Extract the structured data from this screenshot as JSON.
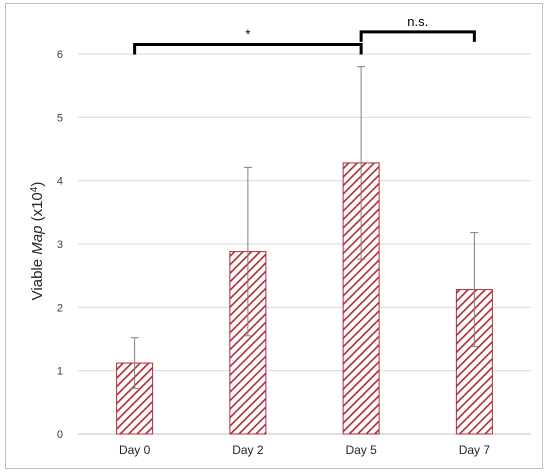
{
  "chart_data": {
    "type": "bar",
    "categories": [
      "Day 0",
      "Day 2",
      "Day 5",
      "Day 7"
    ],
    "values": [
      1.12,
      2.88,
      4.28,
      2.28
    ],
    "error_up": [
      0.4,
      1.33,
      1.52,
      0.9
    ],
    "error_down": [
      0.4,
      1.33,
      1.52,
      0.9
    ],
    "ylabel": {
      "pre": "Viable ",
      "italic": "Map",
      "post": " (x10",
      "sup": "4",
      "close": ")"
    },
    "ylim": [
      0,
      6
    ],
    "yticks": [
      0,
      1,
      2,
      3,
      4,
      5,
      6
    ],
    "grid": true,
    "bar_color": "#b02a37",
    "bar_pattern": "diagonal-hatch",
    "significance": [
      {
        "from": 0,
        "to": 2,
        "label": "*",
        "level": 6.15
      },
      {
        "from": 2,
        "to": 3,
        "label": "n.s.",
        "level": 6.35
      }
    ]
  }
}
